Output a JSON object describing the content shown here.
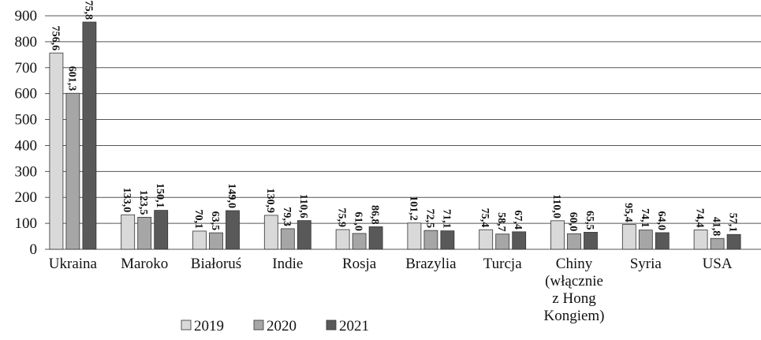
{
  "chart_data": {
    "type": "bar",
    "categories": [
      "Ukraina",
      "Maroko",
      "Białoruś",
      "Indie",
      "Rosja",
      "Brazylia",
      "Turcja",
      "Chiny\n(włącznie\nz Hong\nKongiem)",
      "Syria",
      "USA"
    ],
    "series": [
      {
        "name": "2019",
        "color": "#d9d9d9",
        "values": [
          756.6,
          133.0,
          70.1,
          130.9,
          75.9,
          101.2,
          75.4,
          110.0,
          95.4,
          74.4
        ],
        "value_labels": [
          "756,6",
          "133,0",
          "70,1",
          "130,9",
          "75,9",
          "101,2",
          "75,4",
          "110,0",
          "95,4",
          "74,4"
        ]
      },
      {
        "name": "2020",
        "color": "#a6a6a6",
        "values": [
          601.3,
          123.5,
          63.5,
          79.3,
          61.0,
          72.5,
          58.7,
          60.0,
          74.1,
          41.8
        ],
        "value_labels": [
          "601,3",
          "123,5",
          "63,5",
          "79,3",
          "61,0",
          "72,5",
          "58,7",
          "60,0",
          "74,1",
          "41,8"
        ]
      },
      {
        "name": "2021",
        "color": "#595959",
        "values": [
          875.8,
          150.1,
          149.0,
          110.6,
          86.8,
          71.1,
          67.4,
          65.5,
          64.0,
          57.1
        ],
        "value_labels": [
          "875,8",
          "150,1",
          "149,0",
          "110,6",
          "86,8",
          "71,1",
          "67,4",
          "65,5",
          "64,0",
          "57,1"
        ]
      }
    ],
    "ylim": [
      0,
      900
    ],
    "yticks": [
      0,
      100,
      200,
      300,
      400,
      500,
      600,
      700,
      800,
      900
    ],
    "grid": true,
    "legend": "bottom"
  }
}
